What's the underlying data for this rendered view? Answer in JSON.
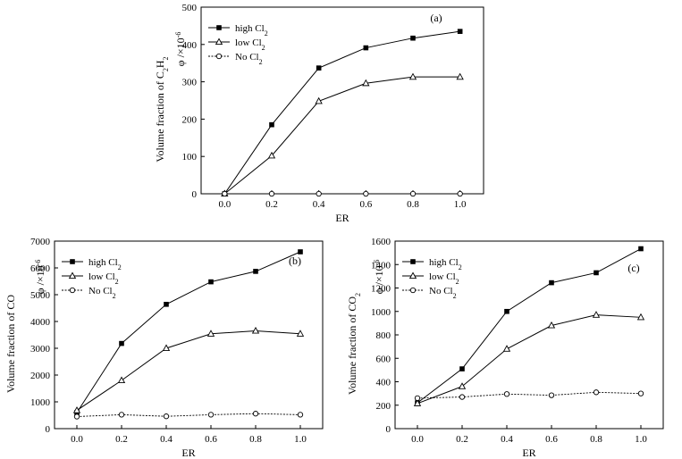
{
  "chart_data": [
    {
      "type": "line",
      "panel_label": "(a)",
      "xlabel": "ER",
      "ylabel_prefix": "Volume fraction of C",
      "ylabel_sub1": "2",
      "ylabel_mid": "H",
      "ylabel_sub2": "2",
      "ylabel_unit": "φ /×10",
      "ylabel_unit_sup": "-6",
      "xlim": [
        -0.1,
        1.1
      ],
      "ylim": [
        0,
        500
      ],
      "xticks": [
        "0.0",
        "0.2",
        "0.4",
        "0.6",
        "0.8",
        "1.0"
      ],
      "yticks": [
        "0",
        "100",
        "200",
        "300",
        "400",
        "500"
      ],
      "legend_position": "top-left",
      "grid": false,
      "x": [
        0.0,
        0.2,
        0.4,
        0.6,
        0.8,
        1.0
      ],
      "series": [
        {
          "name": "high Cl",
          "name_sub": "2",
          "marker": "square",
          "dash": "solid",
          "values": [
            0,
            185,
            337,
            391,
            417,
            435
          ]
        },
        {
          "name": "low Cl",
          "name_sub": "2",
          "marker": "triangle",
          "dash": "solid",
          "values": [
            0,
            102,
            248,
            296,
            313,
            313
          ]
        },
        {
          "name": "No Cl",
          "name_sub": "2",
          "marker": "circle",
          "dash": "dotted",
          "values": [
            0,
            0,
            0,
            0,
            0,
            0
          ]
        }
      ]
    },
    {
      "type": "line",
      "panel_label": "(b)",
      "xlabel": "ER",
      "ylabel_prefix": "Volume fraction of CO",
      "ylabel_sub1": "",
      "ylabel_mid": "",
      "ylabel_sub2": "",
      "ylabel_unit": "φ /×10",
      "ylabel_unit_sup": "-6",
      "xlim": [
        -0.1,
        1.1
      ],
      "ylim": [
        0,
        7000
      ],
      "xticks": [
        "0.0",
        "0.2",
        "0.4",
        "0.6",
        "0.8",
        "1.0"
      ],
      "yticks": [
        "0",
        "1000",
        "2000",
        "3000",
        "4000",
        "5000",
        "6000",
        "7000"
      ],
      "legend_position": "top-left",
      "grid": false,
      "x": [
        0.0,
        0.2,
        0.4,
        0.6,
        0.8,
        1.0
      ],
      "series": [
        {
          "name": "high Cl",
          "name_sub": "2",
          "marker": "square",
          "dash": "solid",
          "values": [
            600,
            3180,
            4640,
            5480,
            5870,
            6600
          ]
        },
        {
          "name": "low Cl",
          "name_sub": "2",
          "marker": "triangle",
          "dash": "solid",
          "values": [
            680,
            1800,
            3000,
            3540,
            3650,
            3540
          ]
        },
        {
          "name": "No Cl",
          "name_sub": "2",
          "marker": "circle",
          "dash": "dotted",
          "values": [
            450,
            520,
            460,
            520,
            560,
            520
          ]
        }
      ]
    },
    {
      "type": "line",
      "panel_label": "(c)",
      "xlabel": "ER",
      "ylabel_prefix": "Volume fraction of CO",
      "ylabel_sub1": "2",
      "ylabel_mid": "",
      "ylabel_sub2": "",
      "ylabel_unit": "φ /×10",
      "ylabel_unit_sup": "-6",
      "xlim": [
        -0.1,
        1.1
      ],
      "ylim": [
        0,
        1600
      ],
      "xticks": [
        "0.0",
        "0.2",
        "0.4",
        "0.6",
        "0.8",
        "1.0"
      ],
      "yticks": [
        "0",
        "200",
        "400",
        "600",
        "800",
        "1000",
        "1200",
        "1400",
        "1600"
      ],
      "legend_position": "top-left",
      "grid": false,
      "x": [
        0.0,
        0.2,
        0.4,
        0.6,
        0.8,
        1.0
      ],
      "series": [
        {
          "name": "high Cl",
          "name_sub": "2",
          "marker": "square",
          "dash": "solid",
          "values": [
            220,
            510,
            1000,
            1245,
            1330,
            1535
          ]
        },
        {
          "name": "low Cl",
          "name_sub": "2",
          "marker": "triangle",
          "dash": "solid",
          "values": [
            215,
            360,
            680,
            880,
            970,
            950
          ]
        },
        {
          "name": "No Cl",
          "name_sub": "2",
          "marker": "circle",
          "dash": "dotted",
          "values": [
            260,
            270,
            295,
            285,
            310,
            300
          ]
        }
      ]
    }
  ]
}
